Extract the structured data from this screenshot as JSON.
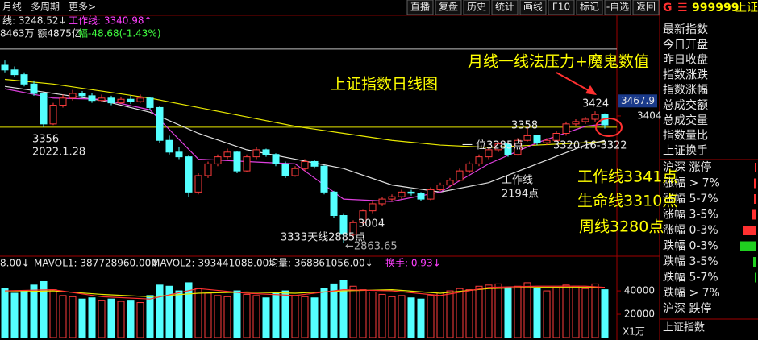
{
  "toolbar": {
    "left": [
      "月线",
      "多周期",
      "更多>"
    ],
    "buttons": [
      "直播",
      "复盘",
      "历史",
      "统计",
      "画线",
      "F10",
      "标记",
      "-自选",
      "返回"
    ]
  },
  "info": {
    "index_line": "线: 3248.52↓",
    "work_line": "工作线: 3340.98↑",
    "volume_amount": "8463万 额4875亿",
    "change": "幅-48.68(-1.43%)"
  },
  "chart_data": [
    {
      "type": "candlestick",
      "up_color": "#ff3c3c",
      "down_color": "#54ffff",
      "ylim": [
        2817,
        3692
      ],
      "yticks": [
        3404
      ],
      "last_price": 3467.9,
      "h_lines": [
        3689,
        3356
      ],
      "candles": [
        [
          3620,
          3640,
          3590,
          3600
        ],
        [
          3600,
          3615,
          3570,
          3580
        ],
        [
          3580,
          3590,
          3530,
          3540
        ],
        [
          3540,
          3555,
          3490,
          3500
        ],
        [
          3500,
          3505,
          3356,
          3370
        ],
        [
          3370,
          3460,
          3365,
          3450
        ],
        [
          3450,
          3495,
          3440,
          3480
        ],
        [
          3480,
          3515,
          3470,
          3500
        ],
        [
          3500,
          3510,
          3480,
          3490
        ],
        [
          3490,
          3500,
          3460,
          3470
        ],
        [
          3470,
          3495,
          3465,
          3480
        ],
        [
          3480,
          3490,
          3450,
          3460
        ],
        [
          3460,
          3485,
          3455,
          3475
        ],
        [
          3475,
          3490,
          3455,
          3465
        ],
        [
          3465,
          3495,
          3460,
          3480
        ],
        [
          3480,
          3485,
          3430,
          3440
        ],
        [
          3440,
          3445,
          3290,
          3300
        ],
        [
          3300,
          3320,
          3240,
          3250
        ],
        [
          3250,
          3270,
          3220,
          3230
        ],
        [
          3230,
          3235,
          3060,
          3080
        ],
        [
          3080,
          3160,
          3070,
          3150
        ],
        [
          3150,
          3210,
          3140,
          3200
        ],
        [
          3200,
          3240,
          3190,
          3230
        ],
        [
          3230,
          3265,
          3220,
          3250
        ],
        [
          3250,
          3255,
          3160,
          3170
        ],
        [
          3170,
          3240,
          3165,
          3230
        ],
        [
          3230,
          3270,
          3220,
          3260
        ],
        [
          3260,
          3265,
          3230,
          3240
        ],
        [
          3240,
          3245,
          3190,
          3200
        ],
        [
          3200,
          3210,
          3140,
          3150
        ],
        [
          3150,
          3190,
          3145,
          3180
        ],
        [
          3180,
          3220,
          3170,
          3210
        ],
        [
          3210,
          3215,
          3180,
          3190
        ],
        [
          3190,
          3195,
          3070,
          3080
        ],
        [
          3080,
          3085,
          2970,
          2980
        ],
        [
          2980,
          2990,
          2863.65,
          2900
        ],
        [
          2900,
          2960,
          2890,
          2950
        ],
        [
          2950,
          3004,
          2940,
          3000
        ],
        [
          3000,
          3040,
          2990,
          3030
        ],
        [
          3030,
          3060,
          3020,
          3050
        ],
        [
          3050,
          3070,
          3040,
          3060
        ],
        [
          3060,
          3090,
          3050,
          3080
        ],
        [
          3080,
          3090,
          3065,
          3075
        ],
        [
          3075,
          3080,
          3040,
          3050
        ],
        [
          3050,
          3100,
          3045,
          3090
        ],
        [
          3090,
          3120,
          3085,
          3110
        ],
        [
          3110,
          3140,
          3100,
          3130
        ],
        [
          3130,
          3180,
          3125,
          3170
        ],
        [
          3170,
          3210,
          3160,
          3200
        ],
        [
          3200,
          3240,
          3190,
          3230
        ],
        [
          3230,
          3270,
          3220,
          3260
        ],
        [
          3260,
          3295,
          3250,
          3285
        ],
        [
          3285,
          3290,
          3230,
          3240
        ],
        [
          3240,
          3310,
          3235,
          3300
        ],
        [
          3300,
          3358,
          3295,
          3320
        ],
        [
          3320,
          3325,
          3280,
          3290
        ],
        [
          3290,
          3310,
          3280,
          3300
        ],
        [
          3300,
          3340,
          3295,
          3330
        ],
        [
          3330,
          3380,
          3320,
          3370
        ],
        [
          3370,
          3390,
          3360,
          3380
        ],
        [
          3380,
          3400,
          3370,
          3390
        ],
        [
          3390,
          3424,
          3380,
          3410
        ],
        [
          3410,
          3415,
          3350,
          3366
        ]
      ],
      "series": [
        {
          "color": "#e8e800",
          "x": [
            0,
            5,
            10,
            15,
            20,
            25,
            30,
            35,
            40,
            45,
            50,
            55,
            60,
            62
          ],
          "values": [
            3560,
            3540,
            3510,
            3480,
            3440,
            3400,
            3360,
            3330,
            3300,
            3280,
            3270,
            3280,
            3290,
            3295
          ]
        },
        {
          "color": "#e0e0e0",
          "x": [
            0,
            5,
            10,
            15,
            20,
            25,
            30,
            35,
            40,
            45,
            50,
            55,
            60,
            62
          ],
          "values": [
            3530,
            3500,
            3470,
            3420,
            3330,
            3260,
            3220,
            3180,
            3110,
            3080,
            3120,
            3200,
            3280,
            3300
          ]
        },
        {
          "color": "#e040e0",
          "x": [
            0,
            5,
            10,
            15,
            20,
            25,
            30,
            35,
            40,
            45,
            50,
            55,
            60,
            62
          ],
          "values": [
            3520,
            3480,
            3475,
            3430,
            3220,
            3210,
            3200,
            3050,
            3040,
            3080,
            3200,
            3290,
            3360,
            3370
          ]
        }
      ],
      "annotations": [
        "上证指数日线图",
        "月线一线法压力+魔鬼数值",
        "3424",
        "3358",
        "3356",
        "2022.1.28",
        "3333天线2885点",
        "3004",
        "←2863.65",
        "一 位3285点",
        "工作线",
        "2194点",
        "3320.16-3322",
        "工作线3341点",
        "生命线3310点",
        "周线3280点"
      ]
    },
    {
      "type": "bar",
      "header": [
        "8.00↓",
        "MAVOL1: 387728960.00↓",
        "MAVOL2: 393441088.00↓",
        "均量: 368861056.00↓",
        "换手: 0.93↓"
      ],
      "ylim": [
        0,
        58000
      ],
      "yticks": [
        20000,
        40000
      ],
      "unit": "X1万",
      "values": [
        42000,
        38000,
        40000,
        45000,
        48000,
        41000,
        36000,
        35000,
        33000,
        34000,
        32000,
        33000,
        31000,
        32000,
        30000,
        36000,
        45000,
        44000,
        40000,
        47000,
        42000,
        38000,
        36000,
        35000,
        40000,
        37000,
        36000,
        34000,
        38000,
        40000,
        36000,
        35000,
        34000,
        42000,
        46000,
        49000,
        44000,
        41000,
        39000,
        37000,
        35000,
        36000,
        34000,
        33000,
        36000,
        38000,
        40000,
        42000,
        41000,
        44000,
        45000,
        46000,
        43000,
        44000,
        47000,
        42000,
        40000,
        43000,
        45000,
        44000,
        42000,
        46000,
        41000
      ],
      "series": [
        {
          "color": "#e8e800",
          "x": [
            0,
            5,
            10,
            15,
            20,
            25,
            30,
            35,
            40,
            45,
            50,
            55,
            60,
            62
          ],
          "values": [
            39000,
            40000,
            37000,
            35000,
            38000,
            39000,
            38000,
            40000,
            41000,
            38000,
            42000,
            43000,
            43000,
            43000
          ]
        },
        {
          "color": "#ff3030",
          "x": [
            0,
            5,
            10,
            15,
            20,
            25,
            30,
            35,
            40,
            45,
            50,
            55,
            60,
            62
          ],
          "values": [
            40000,
            41000,
            35000,
            33000,
            42000,
            38000,
            36000,
            41000,
            40000,
            36000,
            43000,
            44000,
            44000,
            43000
          ]
        }
      ]
    }
  ],
  "sidebar": {
    "prefix": "G",
    "code": "999999",
    "name": "上证",
    "fields": [
      "最新指数",
      "今日开盘",
      "昨日收盘",
      "指数涨跌",
      "指数涨幅",
      "总成交额",
      "总成交量",
      "指数量比",
      "上证换手"
    ],
    "breadth": [
      {
        "label": "沪深 涨停",
        "value": 2
      },
      {
        "label": "涨幅 > 7%",
        "value": 3
      },
      {
        "label": "涨幅 5-7%",
        "value": 3
      },
      {
        "label": "涨幅 3-5%",
        "value": 6
      },
      {
        "label": "涨幅 0-3%",
        "value": 16
      },
      {
        "label": "跌幅 0-3%",
        "value": 20
      },
      {
        "label": "跌幅 3-5%",
        "value": 4
      },
      {
        "label": "跌幅 5-7%",
        "value": 2
      },
      {
        "label": "跌幅 > 7%",
        "value": 1
      },
      {
        "label": "沪深 跌停",
        "value": 1
      }
    ],
    "footer": "上证指数"
  }
}
